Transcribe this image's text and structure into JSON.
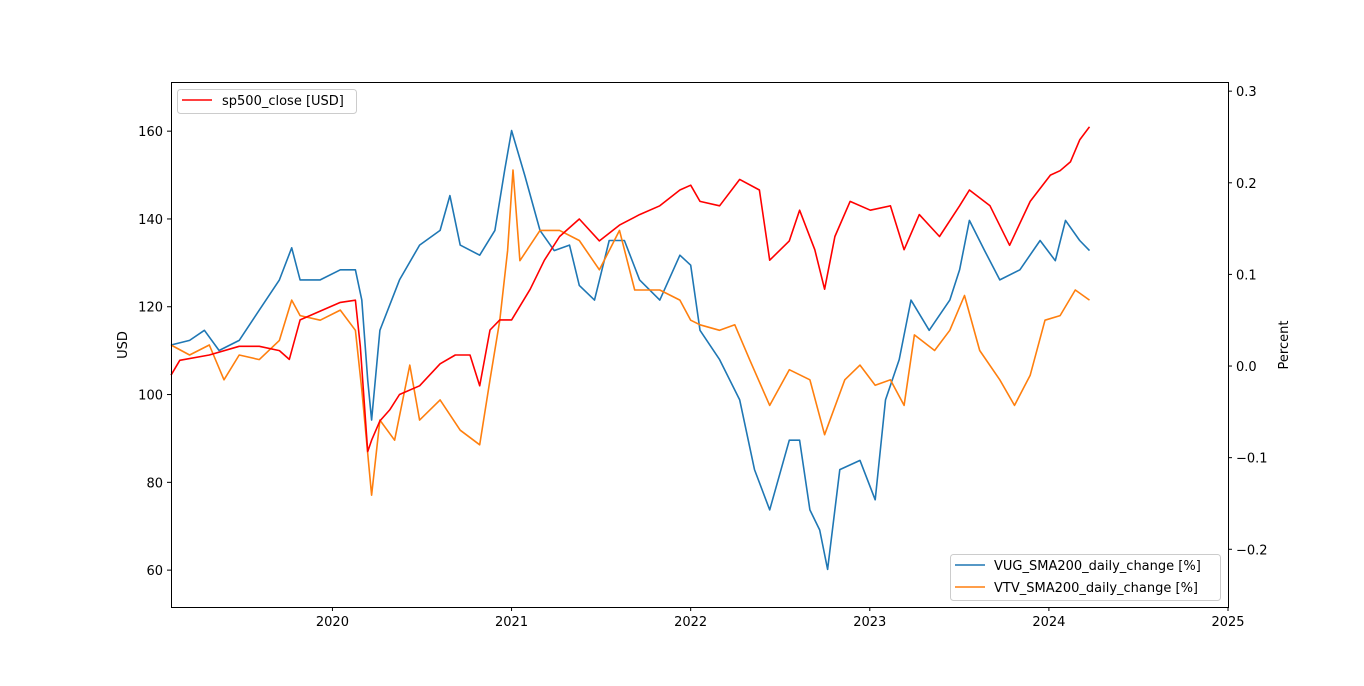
{
  "chart_data": {
    "type": "line",
    "title": "",
    "xlabel": "",
    "ylabel": "USD",
    "ylabel_right": "Percent",
    "xlim": [
      "2019-02-06",
      "2025-01-01"
    ],
    "ylim": [
      51.6,
      171.2
    ],
    "ylim_right": [
      -0.263,
      0.31
    ],
    "x_ticks": [
      "2020",
      "2021",
      "2022",
      "2023",
      "2024",
      "2025"
    ],
    "y_ticks": [
      60,
      80,
      100,
      120,
      140,
      160
    ],
    "y_ticks_right": [
      -0.2,
      -0.1,
      0.0,
      0.1,
      0.2,
      0.3
    ],
    "y_tick_labels_right": [
      "−0.2",
      "−0.1",
      "0.0",
      "0.1",
      "0.2",
      "0.3"
    ],
    "grid": false,
    "legends": [
      {
        "placement": "top-left",
        "entries": [
          "sp500_close [USD]"
        ]
      },
      {
        "placement": "bottom-right",
        "entries": [
          "VUG_SMA200_daily_change [%]",
          "VTV_SMA200_daily_change [%]"
        ]
      }
    ],
    "series": [
      {
        "name": "sp500_close [USD]",
        "axis": "left",
        "color": "#ff0000",
        "points": [
          [
            "2019-02-06",
            104.4
          ],
          [
            "2019-02-24",
            107.8
          ],
          [
            "2019-04-25",
            109
          ],
          [
            "2019-06-25",
            111
          ],
          [
            "2019-08-05",
            111
          ],
          [
            "2019-09-15",
            110
          ],
          [
            "2019-10-05",
            108
          ],
          [
            "2019-10-27",
            117
          ],
          [
            "2019-12-07",
            119
          ],
          [
            "2020-01-17",
            121
          ],
          [
            "2020-02-17",
            121.5
          ],
          [
            "2020-02-27",
            111
          ],
          [
            "2020-03-13",
            87
          ],
          [
            "2020-03-21",
            89.6
          ],
          [
            "2020-04-07",
            94
          ],
          [
            "2020-04-27",
            96.5
          ],
          [
            "2020-05-17",
            100
          ],
          [
            "2020-06-27",
            102
          ],
          [
            "2020-08-08",
            107
          ],
          [
            "2020-09-08",
            109
          ],
          [
            "2020-10-08",
            109
          ],
          [
            "2020-10-28",
            102
          ],
          [
            "2020-11-18",
            114.7
          ],
          [
            "2020-12-08",
            117
          ],
          [
            "2021-01-01",
            117
          ],
          [
            "2021-02-08",
            124
          ],
          [
            "2021-03-09",
            130.6
          ],
          [
            "2021-04-09",
            136
          ],
          [
            "2021-05-19",
            140
          ],
          [
            "2021-06-29",
            135
          ],
          [
            "2021-08-09",
            138.6
          ],
          [
            "2021-09-19",
            141
          ],
          [
            "2021-10-30",
            143
          ],
          [
            "2021-12-10",
            146.6
          ],
          [
            "2022-01-01",
            147.7
          ],
          [
            "2022-01-20",
            144
          ],
          [
            "2022-03-01",
            143
          ],
          [
            "2022-04-11",
            149
          ],
          [
            "2022-05-21",
            146.6
          ],
          [
            "2022-06-11",
            130.6
          ],
          [
            "2022-07-21",
            135
          ],
          [
            "2022-08-11",
            142
          ],
          [
            "2022-09-11",
            133
          ],
          [
            "2022-10-01",
            124
          ],
          [
            "2022-10-22",
            136
          ],
          [
            "2022-11-22",
            144
          ],
          [
            "2023-01-02",
            142
          ],
          [
            "2023-02-12",
            143
          ],
          [
            "2023-03-12",
            133
          ],
          [
            "2023-04-12",
            141
          ],
          [
            "2023-05-23",
            136
          ],
          [
            "2023-07-03",
            143
          ],
          [
            "2023-07-23",
            146.6
          ],
          [
            "2023-09-03",
            143
          ],
          [
            "2023-10-13",
            134
          ],
          [
            "2023-11-24",
            144
          ],
          [
            "2024-01-04",
            150
          ],
          [
            "2024-01-24",
            151
          ],
          [
            "2024-02-14",
            153
          ],
          [
            "2024-03-04",
            158
          ],
          [
            "2024-03-24",
            161
          ]
        ]
      },
      {
        "name": "VUG_SMA200_daily_change [%]",
        "axis": "right",
        "color": "#1f77b4",
        "points": [
          [
            "2019-02-06",
            0.023
          ],
          [
            "2019-03-16",
            0.028
          ],
          [
            "2019-04-15",
            0.039
          ],
          [
            "2019-05-15",
            0.017
          ],
          [
            "2019-06-25",
            0.028
          ],
          [
            "2019-08-05",
            0.061
          ],
          [
            "2019-09-15",
            0.094
          ],
          [
            "2019-10-10",
            0.129
          ],
          [
            "2019-10-27",
            0.094
          ],
          [
            "2019-12-07",
            0.094
          ],
          [
            "2020-01-17",
            0.105
          ],
          [
            "2020-02-17",
            0.105
          ],
          [
            "2020-03-01",
            0.072
          ],
          [
            "2020-03-13",
            -0.015
          ],
          [
            "2020-03-21",
            -0.059
          ],
          [
            "2020-04-07",
            0.039
          ],
          [
            "2020-05-17",
            0.094
          ],
          [
            "2020-06-27",
            0.132
          ],
          [
            "2020-08-08",
            0.148
          ],
          [
            "2020-08-28",
            0.186
          ],
          [
            "2020-09-18",
            0.132
          ],
          [
            "2020-10-28",
            0.121
          ],
          [
            "2020-11-28",
            0.148
          ],
          [
            "2020-12-18",
            0.214
          ],
          [
            "2021-01-01",
            0.257
          ],
          [
            "2021-01-28",
            0.208
          ],
          [
            "2021-02-28",
            0.148
          ],
          [
            "2021-03-29",
            0.126
          ],
          [
            "2021-04-29",
            0.132
          ],
          [
            "2021-05-19",
            0.088
          ],
          [
            "2021-06-19",
            0.072
          ],
          [
            "2021-07-19",
            0.137
          ],
          [
            "2021-08-19",
            0.137
          ],
          [
            "2021-09-19",
            0.094
          ],
          [
            "2021-10-30",
            0.072
          ],
          [
            "2021-12-10",
            0.121
          ],
          [
            "2022-01-01",
            0.11
          ],
          [
            "2022-01-20",
            0.039
          ],
          [
            "2022-03-01",
            0.007
          ],
          [
            "2022-04-11",
            -0.037
          ],
          [
            "2022-05-11",
            -0.113
          ],
          [
            "2022-06-11",
            -0.157
          ],
          [
            "2022-07-21",
            -0.081
          ],
          [
            "2022-08-11",
            -0.081
          ],
          [
            "2022-09-01",
            -0.157
          ],
          [
            "2022-09-21",
            -0.179
          ],
          [
            "2022-10-07",
            -0.222
          ],
          [
            "2022-11-01",
            -0.113
          ],
          [
            "2022-12-12",
            -0.103
          ],
          [
            "2023-01-12",
            -0.146
          ],
          [
            "2023-02-02",
            -0.037
          ],
          [
            "2023-03-02",
            0.007
          ],
          [
            "2023-03-26",
            0.072
          ],
          [
            "2023-05-02",
            0.039
          ],
          [
            "2023-06-13",
            0.072
          ],
          [
            "2023-07-03",
            0.105
          ],
          [
            "2023-07-23",
            0.159
          ],
          [
            "2023-08-23",
            0.126
          ],
          [
            "2023-09-23",
            0.094
          ],
          [
            "2023-11-03",
            0.105
          ],
          [
            "2023-12-14",
            0.137
          ],
          [
            "2024-01-14",
            0.115
          ],
          [
            "2024-02-04",
            0.159
          ],
          [
            "2024-03-04",
            0.137
          ],
          [
            "2024-03-24",
            0.126
          ]
        ]
      },
      {
        "name": "VTV_SMA200_daily_change [%]",
        "axis": "right",
        "color": "#ff7f0e",
        "points": [
          [
            "2019-02-06",
            0.023
          ],
          [
            "2019-03-16",
            0.012
          ],
          [
            "2019-04-25",
            0.023
          ],
          [
            "2019-05-25",
            -0.015
          ],
          [
            "2019-06-25",
            0.012
          ],
          [
            "2019-08-05",
            0.007
          ],
          [
            "2019-09-15",
            0.028
          ],
          [
            "2019-10-10",
            0.072
          ],
          [
            "2019-10-27",
            0.055
          ],
          [
            "2019-12-07",
            0.05
          ],
          [
            "2020-01-17",
            0.061
          ],
          [
            "2020-02-17",
            0.039
          ],
          [
            "2020-03-01",
            -0.026
          ],
          [
            "2020-03-21",
            -0.141
          ],
          [
            "2020-04-07",
            -0.059
          ],
          [
            "2020-05-07",
            -0.081
          ],
          [
            "2020-06-07",
            0.001
          ],
          [
            "2020-06-27",
            -0.059
          ],
          [
            "2020-08-08",
            -0.037
          ],
          [
            "2020-09-18",
            -0.07
          ],
          [
            "2020-10-28",
            -0.086
          ],
          [
            "2020-11-18",
            -0.015
          ],
          [
            "2020-12-08",
            0.05
          ],
          [
            "2020-12-24",
            0.126
          ],
          [
            "2021-01-04",
            0.214
          ],
          [
            "2021-01-18",
            0.115
          ],
          [
            "2021-02-28",
            0.148
          ],
          [
            "2021-04-09",
            0.148
          ],
          [
            "2021-05-19",
            0.137
          ],
          [
            "2021-06-29",
            0.105
          ],
          [
            "2021-08-09",
            0.148
          ],
          [
            "2021-09-09",
            0.083
          ],
          [
            "2021-10-30",
            0.083
          ],
          [
            "2021-12-10",
            0.072
          ],
          [
            "2022-01-01",
            0.05
          ],
          [
            "2022-01-20",
            0.045
          ],
          [
            "2022-03-01",
            0.039
          ],
          [
            "2022-04-01",
            0.045
          ],
          [
            "2022-05-01",
            0.007
          ],
          [
            "2022-06-11",
            -0.043
          ],
          [
            "2022-07-21",
            -0.004
          ],
          [
            "2022-09-01",
            -0.015
          ],
          [
            "2022-10-01",
            -0.075
          ],
          [
            "2022-11-11",
            -0.015
          ],
          [
            "2022-12-12",
            0.001
          ],
          [
            "2023-01-12",
            -0.021
          ],
          [
            "2023-02-12",
            -0.015
          ],
          [
            "2023-03-12",
            -0.043
          ],
          [
            "2023-04-02",
            0.034
          ],
          [
            "2023-05-13",
            0.017
          ],
          [
            "2023-06-13",
            0.039
          ],
          [
            "2023-07-13",
            0.077
          ],
          [
            "2023-08-13",
            0.017
          ],
          [
            "2023-09-23",
            -0.015
          ],
          [
            "2023-10-23",
            -0.043
          ],
          [
            "2023-11-24",
            -0.01
          ],
          [
            "2023-12-24",
            0.05
          ],
          [
            "2024-01-24",
            0.055
          ],
          [
            "2024-02-24",
            0.083
          ],
          [
            "2024-03-24",
            0.072
          ]
        ]
      }
    ]
  }
}
